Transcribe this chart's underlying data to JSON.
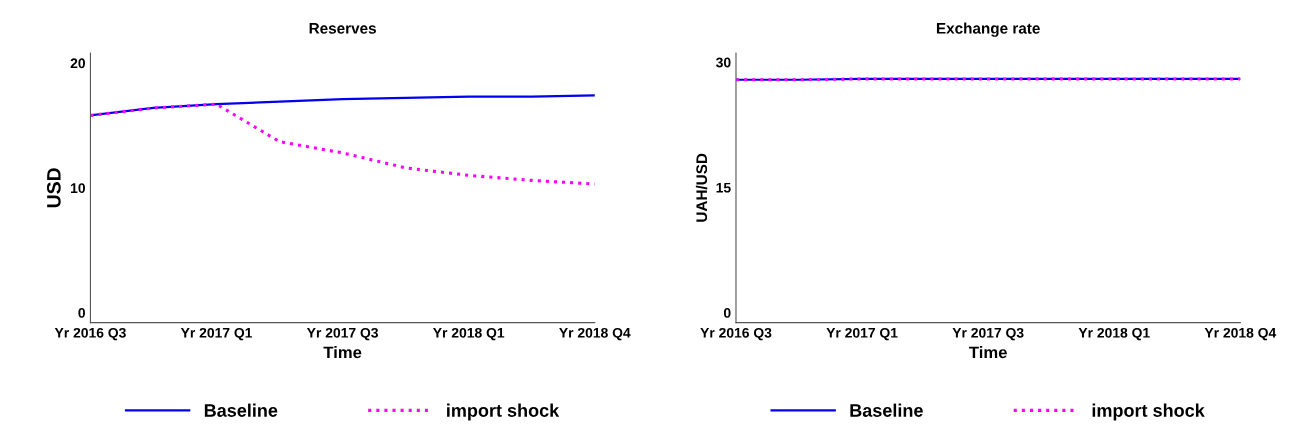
{
  "chart_data": [
    {
      "type": "line",
      "title": "Reserves",
      "xlabel": "Time",
      "ylabel": "USD",
      "ylim": [
        -0.8,
        20.8
      ],
      "categories": [
        "Yr 2016 Q3",
        null,
        "Yr 2017 Q1",
        null,
        "Yr 2017 Q3",
        null,
        "Yr 2018 Q1",
        null,
        "Yr 2018 Q4"
      ],
      "yticks": [
        0,
        10,
        20
      ],
      "grid": false,
      "legend": "bottom",
      "series": [
        {
          "name": "Baseline",
          "color": "#0000ee",
          "line_style": "solid",
          "values": [
            15.8,
            16.4,
            16.7,
            16.9,
            17.1,
            17.2,
            17.3,
            17.3,
            17.4
          ]
        },
        {
          "name": "import shock",
          "color": "#ff00ff",
          "line_style": "dotted",
          "values": [
            15.8,
            16.4,
            16.7,
            13.7,
            12.8,
            11.6,
            11.0,
            10.6,
            10.3
          ]
        }
      ]
    },
    {
      "type": "line",
      "title": "Exchange rate",
      "xlabel": "Time",
      "ylabel": "UAH/USD",
      "ylim": [
        -1.2,
        31.1
      ],
      "categories": [
        "Yr 2016 Q3",
        null,
        "Yr 2017 Q1",
        null,
        "Yr 2017 Q3",
        null,
        "Yr 2018 Q1",
        null,
        "Yr 2018 Q4"
      ],
      "yticks": [
        0,
        15,
        30
      ],
      "grid": false,
      "legend": "bottom",
      "series": [
        {
          "name": "Baseline",
          "color": "#0000ee",
          "line_style": "solid",
          "values": [
            27.9,
            27.9,
            28.0,
            28.0,
            28.0,
            28.0,
            28.0,
            28.0,
            28.0
          ]
        },
        {
          "name": "import shock",
          "color": "#ff00ff",
          "line_style": "dotted",
          "values": [
            27.9,
            27.9,
            28.0,
            28.0,
            28.0,
            28.0,
            28.0,
            28.0,
            28.0
          ]
        }
      ]
    }
  ]
}
